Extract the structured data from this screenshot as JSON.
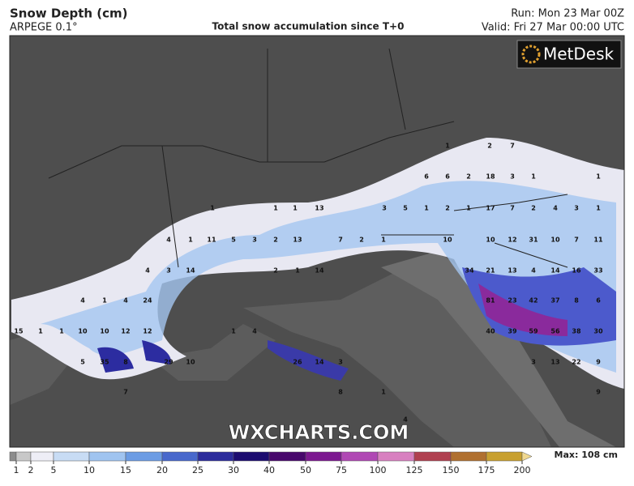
{
  "header": {
    "title": "Snow Depth (cm)",
    "model": "ARPEGE 0.1°",
    "caption": "Total snow accumulation since T+0",
    "run": "Run: Mon 23 Mar 00Z",
    "valid": "Valid: Fri 27 Mar 00:00 UTC"
  },
  "logo": "MetDesk",
  "watermark": "WXCHARTS.COM",
  "legend": {
    "ticks": [
      1,
      2,
      5,
      10,
      15,
      20,
      25,
      30,
      40,
      50,
      75,
      100,
      125,
      150,
      175,
      200
    ],
    "colors": [
      "#8c8c8c",
      "#c8c8c8",
      "#eeeef6",
      "#c8dcf4",
      "#a0c4f0",
      "#6c9ce4",
      "#4868cc",
      "#2c2c9c",
      "#1c0c70",
      "#48086c",
      "#7c1890",
      "#b048b4",
      "#d880c0",
      "#b04050",
      "#b07030",
      "#c8a030",
      "#f0d890"
    ],
    "max": "Max: 108 cm"
  },
  "map_labels": [
    "1",
    "2",
    "7",
    "6",
    "6",
    "2",
    "18",
    "3",
    "1",
    "1",
    "1",
    "1",
    "1",
    "13",
    "3",
    "5",
    "1",
    "2",
    "1",
    "17",
    "7",
    "2",
    "4",
    "3",
    "1",
    "4",
    "1",
    "11",
    "5",
    "3",
    "2",
    "13",
    "7",
    "2",
    "1",
    "10",
    "10",
    "12",
    "31",
    "10",
    "7",
    "11",
    "4",
    "3",
    "14",
    "2",
    "1",
    "14",
    "34",
    "21",
    "13",
    "4",
    "14",
    "16",
    "33",
    "4",
    "1",
    "4",
    "24",
    "81",
    "23",
    "42",
    "37",
    "8",
    "6",
    "15",
    "1",
    "1",
    "10",
    "10",
    "12",
    "12",
    "1",
    "4",
    "40",
    "39",
    "59",
    "56",
    "38",
    "30",
    "5",
    "35",
    "8",
    "29",
    "10",
    "26",
    "14",
    "3",
    "3",
    "13",
    "22",
    "9",
    "7",
    "8",
    "1",
    "9",
    "4"
  ]
}
